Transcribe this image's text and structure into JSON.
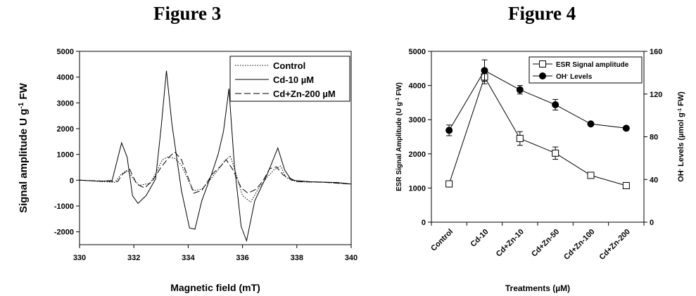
{
  "figure3": {
    "title": "Figure 3",
    "chart_data": {
      "type": "line",
      "xlabel": "Magnetic field (mT)",
      "ylabel_parts": [
        "Signal amplitude U g",
        "-1",
        " FW"
      ],
      "xlim": [
        330,
        340
      ],
      "ylim": [
        -2500,
        5000
      ],
      "xticks": [
        330,
        332,
        334,
        336,
        338,
        340
      ],
      "yticks": [
        -2000,
        -1000,
        0,
        1000,
        2000,
        3000,
        4000,
        5000
      ],
      "legend_position": "top-right",
      "series": [
        {
          "name": "Control",
          "style": "dotted",
          "points": [
            [
              330,
              0
            ],
            [
              330.8,
              -50
            ],
            [
              331.3,
              -80
            ],
            [
              331.55,
              250
            ],
            [
              331.75,
              400
            ],
            [
              331.95,
              100
            ],
            [
              332.2,
              -200
            ],
            [
              332.6,
              -120
            ],
            [
              332.85,
              350
            ],
            [
              333.05,
              800
            ],
            [
              333.25,
              900
            ],
            [
              333.5,
              850
            ],
            [
              333.75,
              600
            ],
            [
              334.0,
              0
            ],
            [
              334.2,
              -400
            ],
            [
              334.5,
              -350
            ],
            [
              334.8,
              0
            ],
            [
              335.1,
              400
            ],
            [
              335.35,
              750
            ],
            [
              335.55,
              950
            ],
            [
              335.75,
              300
            ],
            [
              336.0,
              -600
            ],
            [
              336.3,
              -850
            ],
            [
              336.6,
              -300
            ],
            [
              336.9,
              100
            ],
            [
              337.15,
              400
            ],
            [
              337.4,
              550
            ],
            [
              337.6,
              100
            ],
            [
              338.0,
              -60
            ],
            [
              339.0,
              -80
            ],
            [
              340,
              -150
            ]
          ]
        },
        {
          "name": "Cd-10 µM",
          "style": "solid",
          "points": [
            [
              330,
              0
            ],
            [
              330.8,
              -40
            ],
            [
              331.2,
              -10
            ],
            [
              331.55,
              1450
            ],
            [
              331.75,
              900
            ],
            [
              331.95,
              -600
            ],
            [
              332.15,
              -900
            ],
            [
              332.45,
              -600
            ],
            [
              332.8,
              50
            ],
            [
              333.0,
              2000
            ],
            [
              333.2,
              4250
            ],
            [
              333.4,
              2200
            ],
            [
              333.75,
              -400
            ],
            [
              334.05,
              -1850
            ],
            [
              334.25,
              -1900
            ],
            [
              334.5,
              -800
            ],
            [
              334.85,
              200
            ],
            [
              335.1,
              1000
            ],
            [
              335.3,
              1900
            ],
            [
              335.5,
              3550
            ],
            [
              335.7,
              600
            ],
            [
              335.95,
              -1800
            ],
            [
              336.15,
              -2350
            ],
            [
              336.45,
              -800
            ],
            [
              336.9,
              200
            ],
            [
              337.3,
              1250
            ],
            [
              337.55,
              400
            ],
            [
              337.8,
              0
            ],
            [
              338.5,
              -60
            ],
            [
              339.5,
              -90
            ],
            [
              340,
              -150
            ]
          ]
        },
        {
          "name": "Cd+Zn-200 µM",
          "style": "dashed",
          "points": [
            [
              330,
              0
            ],
            [
              331.0,
              -40
            ],
            [
              331.4,
              -50
            ],
            [
              331.6,
              250
            ],
            [
              331.85,
              420
            ],
            [
              332.1,
              -150
            ],
            [
              332.4,
              -300
            ],
            [
              332.7,
              0
            ],
            [
              333.0,
              500
            ],
            [
              333.3,
              900
            ],
            [
              333.5,
              1100
            ],
            [
              333.75,
              800
            ],
            [
              334.0,
              100
            ],
            [
              334.2,
              -500
            ],
            [
              334.5,
              -400
            ],
            [
              334.9,
              250
            ],
            [
              335.2,
              550
            ],
            [
              335.4,
              800
            ],
            [
              335.65,
              400
            ],
            [
              335.95,
              -300
            ],
            [
              336.2,
              -500
            ],
            [
              336.5,
              -350
            ],
            [
              336.75,
              -30
            ],
            [
              337.0,
              450
            ],
            [
              337.25,
              520
            ],
            [
              337.5,
              200
            ],
            [
              338.0,
              -50
            ],
            [
              339.0,
              -80
            ],
            [
              340,
              -150
            ]
          ]
        }
      ]
    }
  },
  "figure4": {
    "title": "Figure 4",
    "chart_data": {
      "type": "line",
      "xlabel": "Treatments (µM)",
      "ylabel_left": "ESR Signal Amplitude (U g",
      "ylabel_left_sup": "-1",
      "ylabel_left_end": " FW)",
      "ylabel_right": "OH",
      "ylabel_right_sup": "-",
      "ylabel_right_mid": " Levels (µmol g",
      "ylabel_right_sup2": "-1",
      "ylabel_right_end": " FW)",
      "categories": [
        "Control",
        "Cd-10",
        "Cd+Zn-10",
        "Cd+Zn-50",
        "Cd+Zn-100",
        "Cd+Zn-200"
      ],
      "ylim_left": [
        0,
        5000
      ],
      "yticks_left": [
        0,
        1000,
        2000,
        3000,
        4000,
        5000
      ],
      "ylim_right": [
        0,
        160
      ],
      "yticks_right": [
        0,
        40,
        80,
        120,
        160
      ],
      "legend_position": "top-right",
      "series": [
        {
          "name": "ESR Signal amplitude",
          "axis": "left",
          "marker": "open-square",
          "values": [
            1120,
            4250,
            2450,
            2020,
            1370,
            1070
          ],
          "errors": [
            0,
            200,
            200,
            180,
            0,
            0
          ]
        },
        {
          "name_parts": [
            "OH",
            "-",
            " Levels"
          ],
          "axis": "right",
          "marker": "filled-circle",
          "values": [
            86,
            142,
            124,
            110,
            92,
            88
          ],
          "errors": [
            5,
            10,
            4,
            5,
            0,
            0
          ]
        }
      ]
    }
  }
}
